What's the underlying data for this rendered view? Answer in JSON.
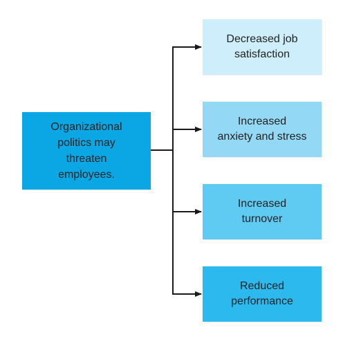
{
  "source": {
    "text": "Organizational\npolitics may\nthreaten\nemployees.",
    "color": "#0aa7e4"
  },
  "outcomes": [
    {
      "text": "Decreased job\nsatisfaction",
      "color": "#cdeefa"
    },
    {
      "text": "Increased\nanxiety and stress",
      "color": "#93d9f5"
    },
    {
      "text": "Increased\nturnover",
      "color": "#5fcaf2"
    },
    {
      "text": "Reduced\nperformance",
      "color": "#2bb9ee"
    }
  ],
  "connector_color": "#1a1a1a"
}
